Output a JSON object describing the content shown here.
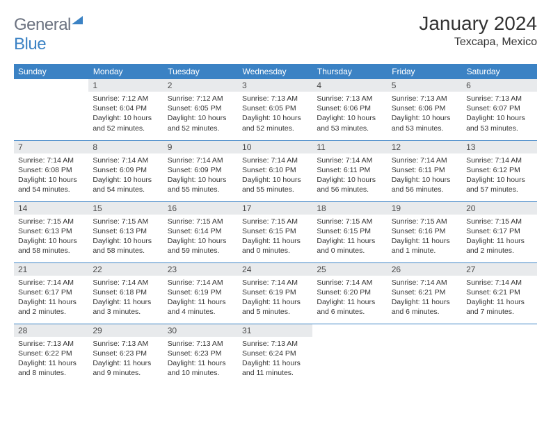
{
  "logo": {
    "text1": "General",
    "text2": "Blue"
  },
  "title": "January 2024",
  "location": "Texcapa, Mexico",
  "weekdays": [
    "Sunday",
    "Monday",
    "Tuesday",
    "Wednesday",
    "Thursday",
    "Friday",
    "Saturday"
  ],
  "colors": {
    "header_bg": "#3b82c4",
    "header_text": "#ffffff",
    "daynum_bg": "#e8eaec",
    "text": "#333333",
    "logo_gray": "#6b7280",
    "logo_blue": "#3b82c4"
  },
  "start_weekday": 1,
  "days": [
    {
      "n": 1,
      "sunrise": "7:12 AM",
      "sunset": "6:04 PM",
      "daylight": "10 hours and 52 minutes."
    },
    {
      "n": 2,
      "sunrise": "7:12 AM",
      "sunset": "6:05 PM",
      "daylight": "10 hours and 52 minutes."
    },
    {
      "n": 3,
      "sunrise": "7:13 AM",
      "sunset": "6:05 PM",
      "daylight": "10 hours and 52 minutes."
    },
    {
      "n": 4,
      "sunrise": "7:13 AM",
      "sunset": "6:06 PM",
      "daylight": "10 hours and 53 minutes."
    },
    {
      "n": 5,
      "sunrise": "7:13 AM",
      "sunset": "6:06 PM",
      "daylight": "10 hours and 53 minutes."
    },
    {
      "n": 6,
      "sunrise": "7:13 AM",
      "sunset": "6:07 PM",
      "daylight": "10 hours and 53 minutes."
    },
    {
      "n": 7,
      "sunrise": "7:14 AM",
      "sunset": "6:08 PM",
      "daylight": "10 hours and 54 minutes."
    },
    {
      "n": 8,
      "sunrise": "7:14 AM",
      "sunset": "6:09 PM",
      "daylight": "10 hours and 54 minutes."
    },
    {
      "n": 9,
      "sunrise": "7:14 AM",
      "sunset": "6:09 PM",
      "daylight": "10 hours and 55 minutes."
    },
    {
      "n": 10,
      "sunrise": "7:14 AM",
      "sunset": "6:10 PM",
      "daylight": "10 hours and 55 minutes."
    },
    {
      "n": 11,
      "sunrise": "7:14 AM",
      "sunset": "6:11 PM",
      "daylight": "10 hours and 56 minutes."
    },
    {
      "n": 12,
      "sunrise": "7:14 AM",
      "sunset": "6:11 PM",
      "daylight": "10 hours and 56 minutes."
    },
    {
      "n": 13,
      "sunrise": "7:14 AM",
      "sunset": "6:12 PM",
      "daylight": "10 hours and 57 minutes."
    },
    {
      "n": 14,
      "sunrise": "7:15 AM",
      "sunset": "6:13 PM",
      "daylight": "10 hours and 58 minutes."
    },
    {
      "n": 15,
      "sunrise": "7:15 AM",
      "sunset": "6:13 PM",
      "daylight": "10 hours and 58 minutes."
    },
    {
      "n": 16,
      "sunrise": "7:15 AM",
      "sunset": "6:14 PM",
      "daylight": "10 hours and 59 minutes."
    },
    {
      "n": 17,
      "sunrise": "7:15 AM",
      "sunset": "6:15 PM",
      "daylight": "11 hours and 0 minutes."
    },
    {
      "n": 18,
      "sunrise": "7:15 AM",
      "sunset": "6:15 PM",
      "daylight": "11 hours and 0 minutes."
    },
    {
      "n": 19,
      "sunrise": "7:15 AM",
      "sunset": "6:16 PM",
      "daylight": "11 hours and 1 minute."
    },
    {
      "n": 20,
      "sunrise": "7:15 AM",
      "sunset": "6:17 PM",
      "daylight": "11 hours and 2 minutes."
    },
    {
      "n": 21,
      "sunrise": "7:14 AM",
      "sunset": "6:17 PM",
      "daylight": "11 hours and 2 minutes."
    },
    {
      "n": 22,
      "sunrise": "7:14 AM",
      "sunset": "6:18 PM",
      "daylight": "11 hours and 3 minutes."
    },
    {
      "n": 23,
      "sunrise": "7:14 AM",
      "sunset": "6:19 PM",
      "daylight": "11 hours and 4 minutes."
    },
    {
      "n": 24,
      "sunrise": "7:14 AM",
      "sunset": "6:19 PM",
      "daylight": "11 hours and 5 minutes."
    },
    {
      "n": 25,
      "sunrise": "7:14 AM",
      "sunset": "6:20 PM",
      "daylight": "11 hours and 6 minutes."
    },
    {
      "n": 26,
      "sunrise": "7:14 AM",
      "sunset": "6:21 PM",
      "daylight": "11 hours and 6 minutes."
    },
    {
      "n": 27,
      "sunrise": "7:14 AM",
      "sunset": "6:21 PM",
      "daylight": "11 hours and 7 minutes."
    },
    {
      "n": 28,
      "sunrise": "7:13 AM",
      "sunset": "6:22 PM",
      "daylight": "11 hours and 8 minutes."
    },
    {
      "n": 29,
      "sunrise": "7:13 AM",
      "sunset": "6:23 PM",
      "daylight": "11 hours and 9 minutes."
    },
    {
      "n": 30,
      "sunrise": "7:13 AM",
      "sunset": "6:23 PM",
      "daylight": "11 hours and 10 minutes."
    },
    {
      "n": 31,
      "sunrise": "7:13 AM",
      "sunset": "6:24 PM",
      "daylight": "11 hours and 11 minutes."
    }
  ],
  "labels": {
    "sunrise": "Sunrise:",
    "sunset": "Sunset:",
    "daylight": "Daylight:"
  }
}
